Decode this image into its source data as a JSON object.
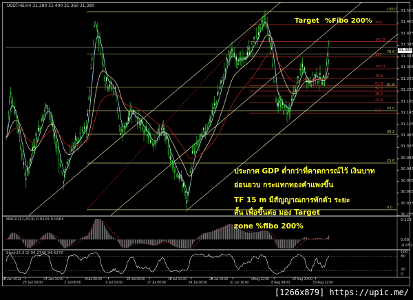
{
  "window": {
    "title": "USDTHB,H4  31.380 31.400 31.360 31.380",
    "current_price": "31.380"
  },
  "annotations": {
    "title_target": "Target",
    "title_fibo": "%Fibo 200%",
    "line1": "ประกาศ   GDP ต่ำกว่าที่คาดการณ์ไว้   เงินบาท",
    "line2": "อ่อนยวบ   กระแทกทองคำแพงขึ้น",
    "line3": "TF 15 m มีสัญญาณการพักตัว   ระยะ",
    "line4": "สั้น   เพื่อขึ้นต่อ   มอง   Target",
    "line5": "zone %fibo 200%"
  },
  "watermark": "[1266x879] https://upic.me/",
  "colors": {
    "bars": "#33dd33",
    "bars_light": "#bbffbb",
    "fibo_main": "#c8c87a",
    "fibo_small": "#c03030",
    "text": "#ffff33",
    "ma_fast": "#9fd8e8",
    "ma_mid": "#d8d0a0",
    "ma_slow": "#b02020"
  },
  "chart_data": [
    {
      "type": "candlestick",
      "symbol": "USDTHB",
      "timeframe": "H4",
      "ylim": [
        30.785,
        31.52
      ],
      "y_ticks": [
        "31.505",
        "31.465",
        "31.425",
        "31.385",
        "31.345",
        "31.305",
        "31.265",
        "31.225",
        "31.185",
        "31.145",
        "31.105",
        "31.065",
        "31.025",
        "30.985",
        "30.945",
        "30.905",
        "30.865",
        "30.825",
        "30.785"
      ],
      "x_ticks": [
        "20 Jun 2013",
        "25 Jun 00:00",
        "27 Jun 16:00",
        "2 Jul 08:00",
        "5 Jul 00:00",
        "9 Jul 16:00",
        "12 Jul 08:00",
        "17 Jul 00:00",
        "19 Jul 16:00",
        "24 Jul 08:00",
        "29 Jul 00:00",
        "31 Jul 16:00",
        "5 Aug 12:00",
        "8 Aug 04:00",
        "12 Aug 20:00",
        "15 Aug 12:00"
      ],
      "approx_close_path": [
        30.979,
        31.222,
        31.141,
        30.914,
        31.044,
        31.182,
        31.092,
        30.906,
        31.019,
        31.092,
        31.481,
        31.4,
        31.263,
        31.222,
        31.06,
        31.165,
        31.092,
        31.044,
        31.092,
        30.979,
        30.882,
        30.825,
        30.995,
        31.125,
        31.246,
        31.36,
        31.327,
        31.384,
        31.481,
        31.384,
        31.182,
        31.165,
        31.157,
        31.255,
        31.311,
        31.255,
        31.279,
        31.255,
        31.392
      ],
      "fibo_main": {
        "from": 30.805,
        "to": 31.505,
        "levels": [
          {
            "label": "100.0",
            "value": 31.505
          },
          {
            "label": "78.6",
            "value": 31.355
          },
          {
            "label": "61.8",
            "value": 31.238
          },
          {
            "label": "50.0",
            "value": 31.155
          },
          {
            "label": "38.2",
            "value": 31.072
          },
          {
            "label": "23.6",
            "value": 30.97
          },
          {
            "label": "0.0",
            "value": 30.805
          }
        ]
      },
      "fibo_small": {
        "from": 31.147,
        "to": 31.303,
        "levels": [
          {
            "label": "200",
            "value": 31.459
          },
          {
            "label": "161.8",
            "value": 31.399
          },
          {
            "label": "127",
            "value": 31.345
          },
          {
            "label": "100.0",
            "value": 31.303
          },
          {
            "label": "78.6",
            "value": 31.27
          },
          {
            "label": "61.8",
            "value": 31.243
          },
          {
            "label": "50.0",
            "value": 31.225
          },
          {
            "label": "38.2",
            "value": 31.207
          },
          {
            "label": "23.6",
            "value": 31.184
          },
          {
            "label": "0.0",
            "value": 31.147
          }
        ]
      }
    },
    {
      "type": "bar",
      "name": "MACD(12,26,9) 0.0229 0.0064",
      "y_ticks": [
        "0.123",
        "0.00",
        "-0.0524"
      ],
      "ylim": [
        -0.0524,
        0.123
      ]
    },
    {
      "type": "line",
      "name": "Stoch(5,3,3) 96.2745 94.6270",
      "y_ticks": [
        "100",
        "80",
        "20",
        "0"
      ],
      "ylim": [
        0,
        100
      ],
      "levels": [
        80,
        20
      ]
    }
  ]
}
